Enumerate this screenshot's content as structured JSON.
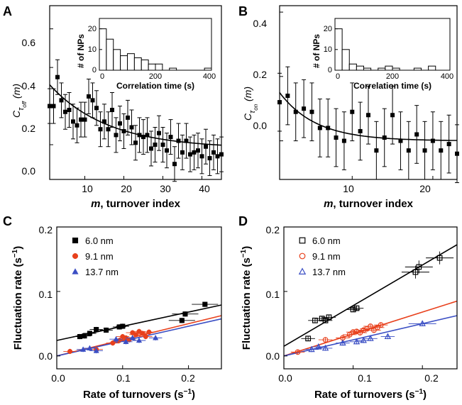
{
  "panels": {
    "A": {
      "letter": "A",
      "xlabel_m": "m",
      "xlabel_rest": ", turnover index",
      "ylabel_main": "C",
      "ylabel_sub": "τ",
      "ylabel_subsub": "off",
      "ylabel_arg": "(m)",
      "xticks": [
        "10",
        "20",
        "30",
        "40"
      ],
      "yticks": [
        "0.0",
        "0.2",
        "0.4",
        "0.6"
      ],
      "inset": {
        "ylabel": "# of NPs",
        "xlabel": "Correlation time (s)",
        "xticks": [
          "0",
          "200",
          "400"
        ],
        "yticks": [
          "0",
          "10",
          "20"
        ]
      }
    },
    "B": {
      "letter": "B",
      "xlabel_m": "m",
      "xlabel_rest": ", turnover index",
      "ylabel_main": "C",
      "ylabel_sub": "τ",
      "ylabel_subsub": "on",
      "ylabel_arg": "(m)",
      "xticks": [
        "10",
        "20"
      ],
      "yticks": [
        "0.0",
        "0.2",
        "0.4"
      ],
      "inset": {
        "ylabel": "# of NPs",
        "xlabel": "Correlation time (s)",
        "xticks": [
          "0",
          "200",
          "400"
        ],
        "yticks": [
          "0",
          "10",
          "20"
        ]
      }
    },
    "C": {
      "letter": "C",
      "ylabel_main": "Fluctuation rate (s",
      "ylabel_sup": "−1",
      "ylabel_end": ")",
      "xlabel_main": "Rate of turnovers (s",
      "xlabel_sup": "−1",
      "xlabel_end": ")",
      "xticks": [
        "0.0",
        "0.1",
        "0.2"
      ],
      "yticks": [
        "0.0",
        "0.1",
        "0.2"
      ],
      "legend": [
        "6.0 nm",
        "9.1 nm",
        "13.7 nm"
      ]
    },
    "D": {
      "letter": "D",
      "ylabel_main": "Fluctuation rate (s",
      "ylabel_sup": "−1",
      "ylabel_end": ")",
      "xlabel_main": "Rate of turnovers (s",
      "xlabel_sup": "−1",
      "xlabel_end": ")",
      "xticks": [
        "0.0",
        "0.1",
        "0.2"
      ],
      "yticks": [
        "0.0",
        "0.1",
        "0.2"
      ],
      "legend": [
        "6.0 nm",
        "9.1 nm",
        "13.7 nm"
      ]
    }
  },
  "colors": {
    "s60": "#000000",
    "s91": "#e8401c",
    "s137": "#3b4fc4"
  },
  "chart_data": [
    {
      "panel": "A",
      "type": "scatter",
      "xlim": [
        1,
        45
      ],
      "ylim": [
        -0.18,
        0.72
      ],
      "x": [
        1,
        2,
        3,
        4,
        5,
        6,
        7,
        8,
        9,
        10,
        11,
        12,
        13,
        14,
        15,
        16,
        17,
        18,
        19,
        20,
        21,
        22,
        23,
        24,
        25,
        26,
        27,
        28,
        29,
        30,
        31,
        32,
        33,
        34,
        35,
        36,
        37,
        38,
        39,
        40,
        41,
        42,
        43,
        44,
        45
      ],
      "y": [
        0.2,
        0.2,
        0.35,
        0.23,
        0.17,
        0.18,
        0.12,
        0.1,
        0.13,
        0.13,
        0.25,
        0.23,
        0.19,
        0.08,
        0.12,
        0.08,
        0.18,
        0.05,
        0.11,
        0.07,
        0.14,
        0.09,
        0.01,
        0.05,
        0.04,
        0.05,
        -0.02,
        0.0,
        0.06,
        0.0,
        -0.03,
        0.04,
        -0.1,
        0.02,
        -0.04,
        0.02,
        -0.05,
        -0.04,
        -0.03,
        -0.06,
        -0.01,
        -0.07,
        -0.04,
        -0.06,
        -0.05
      ],
      "err": 0.09,
      "fit": "exponential decay",
      "inset_histogram": {
        "type": "bar",
        "bin_width": 25,
        "bin_starts": [
          0,
          25,
          50,
          75,
          100,
          125,
          150,
          175,
          200,
          225,
          250,
          275,
          300,
          325,
          350,
          375
        ],
        "counts": [
          20,
          15,
          10,
          7,
          8,
          6,
          5,
          3,
          3,
          0,
          1,
          0,
          0,
          0,
          0,
          1
        ],
        "xlim": [
          0,
          400
        ],
        "ylim": [
          0,
          25
        ]
      }
    },
    {
      "panel": "B",
      "type": "scatter",
      "xlim": [
        1,
        23
      ],
      "ylim": [
        -0.12,
        0.42
      ],
      "x": [
        1,
        2,
        3,
        4,
        5,
        6,
        7,
        8,
        9,
        10,
        11,
        12,
        13,
        14,
        15,
        16,
        17,
        18,
        19,
        20,
        21,
        22,
        23
      ],
      "y": [
        0.12,
        0.14,
        0.09,
        0.1,
        0.09,
        0.04,
        0.04,
        0.01,
        0.0,
        0.09,
        0.03,
        0.08,
        -0.03,
        0.01,
        0.08,
        0.0,
        -0.03,
        0.02,
        -0.03,
        0.0,
        -0.03,
        -0.01,
        -0.04
      ],
      "err": 0.09,
      "fit": "exponential decay",
      "inset_histogram": {
        "type": "bar",
        "bin_width": 25,
        "bin_starts": [
          0,
          25,
          50,
          75,
          100,
          125,
          150,
          175,
          200,
          225,
          250,
          275,
          300,
          325,
          350,
          375
        ],
        "counts": [
          20,
          10,
          3,
          2,
          1,
          0,
          1,
          2,
          1,
          0,
          0,
          1,
          0,
          2,
          0,
          0
        ],
        "xlim": [
          0,
          400
        ],
        "ylim": [
          0,
          25
        ]
      }
    },
    {
      "panel": "C",
      "type": "scatter",
      "xlim": [
        0.0,
        0.25
      ],
      "ylim": [
        -0.02,
        0.2
      ],
      "xlabel": "Rate of turnovers (s−1)",
      "ylabel": "Fluctuation rate (s−1)",
      "series": [
        {
          "name": "6.0 nm",
          "marker": "square-filled",
          "points": [
            [
              0.035,
              0.03
            ],
            [
              0.042,
              0.031
            ],
            [
              0.05,
              0.035
            ],
            [
              0.06,
              0.041
            ],
            [
              0.075,
              0.04
            ],
            [
              0.095,
              0.045
            ],
            [
              0.1,
              0.046
            ],
            [
              0.19,
              0.055
            ],
            [
              0.195,
              0.065
            ],
            [
              0.225,
              0.08
            ]
          ],
          "fit": [
            0.024,
            0.22
          ]
        },
        {
          "name": "9.1 nm",
          "marker": "circle-filled",
          "points": [
            [
              0.02,
              0.007
            ],
            [
              0.06,
              0.01
            ],
            [
              0.085,
              0.02
            ],
            [
              0.095,
              0.024
            ],
            [
              0.1,
              0.03
            ],
            [
              0.105,
              0.028
            ],
            [
              0.11,
              0.025
            ],
            [
              0.115,
              0.036
            ],
            [
              0.12,
              0.033
            ],
            [
              0.125,
              0.038
            ],
            [
              0.13,
              0.035
            ],
            [
              0.135,
              0.03
            ],
            [
              0.14,
              0.037
            ]
          ],
          "fit": [
            0.0,
            0.25
          ]
        },
        {
          "name": "13.7 nm",
          "marker": "triangle-filled",
          "points": [
            [
              0.04,
              0.01
            ],
            [
              0.05,
              0.012
            ],
            [
              0.06,
              0.008
            ],
            [
              0.09,
              0.026
            ],
            [
              0.105,
              0.022
            ],
            [
              0.115,
              0.028
            ],
            [
              0.125,
              0.024
            ],
            [
              0.15,
              0.028
            ]
          ],
          "fit": [
            0.0,
            0.23
          ]
        }
      ]
    },
    {
      "panel": "D",
      "type": "scatter",
      "xlim": [
        0.0,
        0.25
      ],
      "ylim": [
        -0.02,
        0.2
      ],
      "xlabel": "Rate of turnovers (s−1)",
      "ylabel": "Fluctuation rate (s−1)",
      "series": [
        {
          "name": "6.0 nm",
          "marker": "square-open",
          "points": [
            [
              0.035,
              0.027
            ],
            [
              0.045,
              0.055
            ],
            [
              0.055,
              0.058
            ],
            [
              0.06,
              0.055
            ],
            [
              0.065,
              0.06
            ],
            [
              0.1,
              0.072
            ],
            [
              0.105,
              0.074
            ],
            [
              0.19,
              0.13
            ],
            [
              0.195,
              0.138
            ],
            [
              0.225,
              0.152
            ]
          ],
          "fit": [
            0.015,
            0.63
          ]
        },
        {
          "name": "9.1 nm",
          "marker": "circle-open",
          "points": [
            [
              0.02,
              0.006
            ],
            [
              0.06,
              0.025
            ],
            [
              0.085,
              0.028
            ],
            [
              0.095,
              0.033
            ],
            [
              0.1,
              0.037
            ],
            [
              0.105,
              0.038
            ],
            [
              0.11,
              0.036
            ],
            [
              0.115,
              0.04
            ],
            [
              0.12,
              0.042
            ],
            [
              0.125,
              0.046
            ],
            [
              0.13,
              0.04
            ],
            [
              0.135,
              0.044
            ],
            [
              0.14,
              0.048
            ]
          ],
          "fit": [
            0.0,
            0.34
          ]
        },
        {
          "name": "13.7 nm",
          "marker": "triangle-open",
          "points": [
            [
              0.04,
              0.01
            ],
            [
              0.05,
              0.014
            ],
            [
              0.06,
              0.012
            ],
            [
              0.085,
              0.02
            ],
            [
              0.105,
              0.022
            ],
            [
              0.115,
              0.024
            ],
            [
              0.125,
              0.027
            ],
            [
              0.15,
              0.03
            ],
            [
              0.2,
              0.05
            ]
          ],
          "fit": [
            0.0,
            0.25
          ]
        }
      ]
    }
  ]
}
